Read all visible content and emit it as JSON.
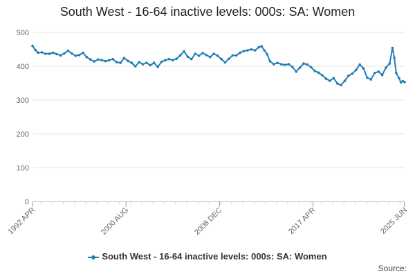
{
  "chart_data": {
    "type": "line",
    "title": "South West - 16-64 inactive levels: 000s: SA: Women",
    "xlabel": "",
    "ylabel": "",
    "ylim": [
      0,
      500
    ],
    "yticks": [
      0,
      100,
      200,
      300,
      400,
      500
    ],
    "xtick_labels": [
      "1992 APR",
      "2000 AUG",
      "2008 DEC",
      "2017 APR",
      "2025 JUN"
    ],
    "xtick_dates": [
      "1992-04",
      "2000-08",
      "2008-12",
      "2017-04",
      "2025-06"
    ],
    "grid": true,
    "legend_position": "bottom",
    "series": [
      {
        "name": "South West - 16-64 inactive levels: 000s: SA: Women",
        "color": "#1f7fb4",
        "points": [
          [
            "1992-04",
            460
          ],
          [
            "1992-07",
            448
          ],
          [
            "1992-10",
            440
          ],
          [
            "1993-02",
            441
          ],
          [
            "1993-06",
            437
          ],
          [
            "1993-10",
            437
          ],
          [
            "1994-02",
            440
          ],
          [
            "1994-06",
            436
          ],
          [
            "1994-10",
            432
          ],
          [
            "1995-02",
            438
          ],
          [
            "1995-06",
            446
          ],
          [
            "1995-10",
            438
          ],
          [
            "1996-02",
            431
          ],
          [
            "1996-06",
            433
          ],
          [
            "1996-10",
            440
          ],
          [
            "1997-02",
            427
          ],
          [
            "1997-06",
            420
          ],
          [
            "1997-10",
            414
          ],
          [
            "1998-02",
            420
          ],
          [
            "1998-06",
            418
          ],
          [
            "1998-10",
            415
          ],
          [
            "1999-02",
            418
          ],
          [
            "1999-06",
            421
          ],
          [
            "1999-10",
            412
          ],
          [
            "2000-02",
            410
          ],
          [
            "2000-06",
            424
          ],
          [
            "2000-10",
            416
          ],
          [
            "2001-02",
            410
          ],
          [
            "2001-06",
            400
          ],
          [
            "2001-10",
            412
          ],
          [
            "2002-02",
            406
          ],
          [
            "2002-06",
            410
          ],
          [
            "2002-10",
            403
          ],
          [
            "2003-02",
            410
          ],
          [
            "2003-06",
            398
          ],
          [
            "2003-10",
            413
          ],
          [
            "2004-02",
            418
          ],
          [
            "2004-06",
            421
          ],
          [
            "2004-10",
            418
          ],
          [
            "2005-02",
            422
          ],
          [
            "2005-06",
            432
          ],
          [
            "2005-10",
            444
          ],
          [
            "2006-02",
            428
          ],
          [
            "2006-06",
            421
          ],
          [
            "2006-10",
            437
          ],
          [
            "2007-02",
            431
          ],
          [
            "2007-06",
            439
          ],
          [
            "2007-10",
            433
          ],
          [
            "2008-02",
            427
          ],
          [
            "2008-06",
            437
          ],
          [
            "2008-10",
            431
          ],
          [
            "2009-02",
            421
          ],
          [
            "2009-06",
            411
          ],
          [
            "2009-10",
            422
          ],
          [
            "2010-02",
            432
          ],
          [
            "2010-06",
            432
          ],
          [
            "2010-10",
            440
          ],
          [
            "2011-02",
            445
          ],
          [
            "2011-06",
            447
          ],
          [
            "2011-10",
            450
          ],
          [
            "2012-02",
            447
          ],
          [
            "2012-06",
            456
          ],
          [
            "2012-09",
            459
          ],
          [
            "2012-12",
            447
          ],
          [
            "2013-03",
            435
          ],
          [
            "2013-06",
            415
          ],
          [
            "2013-10",
            406
          ],
          [
            "2014-02",
            410
          ],
          [
            "2014-06",
            406
          ],
          [
            "2014-10",
            404
          ],
          [
            "2015-02",
            406
          ],
          [
            "2015-06",
            398
          ],
          [
            "2015-10",
            384
          ],
          [
            "2016-02",
            396
          ],
          [
            "2016-06",
            408
          ],
          [
            "2016-10",
            405
          ],
          [
            "2017-02",
            397
          ],
          [
            "2017-06",
            386
          ],
          [
            "2017-10",
            381
          ],
          [
            "2018-02",
            373
          ],
          [
            "2018-06",
            363
          ],
          [
            "2018-10",
            357
          ],
          [
            "2019-02",
            365
          ],
          [
            "2019-06",
            349
          ],
          [
            "2019-10",
            344
          ],
          [
            "2020-02",
            357
          ],
          [
            "2020-06",
            372
          ],
          [
            "2020-10",
            378
          ],
          [
            "2021-02",
            389
          ],
          [
            "2021-06",
            405
          ],
          [
            "2021-10",
            394
          ],
          [
            "2022-02",
            366
          ],
          [
            "2022-06",
            361
          ],
          [
            "2022-10",
            380
          ],
          [
            "2023-02",
            384
          ],
          [
            "2023-06",
            374
          ],
          [
            "2023-10",
            396
          ],
          [
            "2024-02",
            408
          ],
          [
            "2024-05",
            454
          ],
          [
            "2024-07",
            425
          ],
          [
            "2024-09",
            380
          ],
          [
            "2024-12",
            365
          ],
          [
            "2025-02",
            352
          ],
          [
            "2025-04",
            356
          ],
          [
            "2025-06",
            353
          ]
        ]
      }
    ]
  },
  "legend": {
    "label": "South West - 16-64 inactive levels: 000s: SA: Women"
  },
  "source": {
    "label": "Source:"
  }
}
